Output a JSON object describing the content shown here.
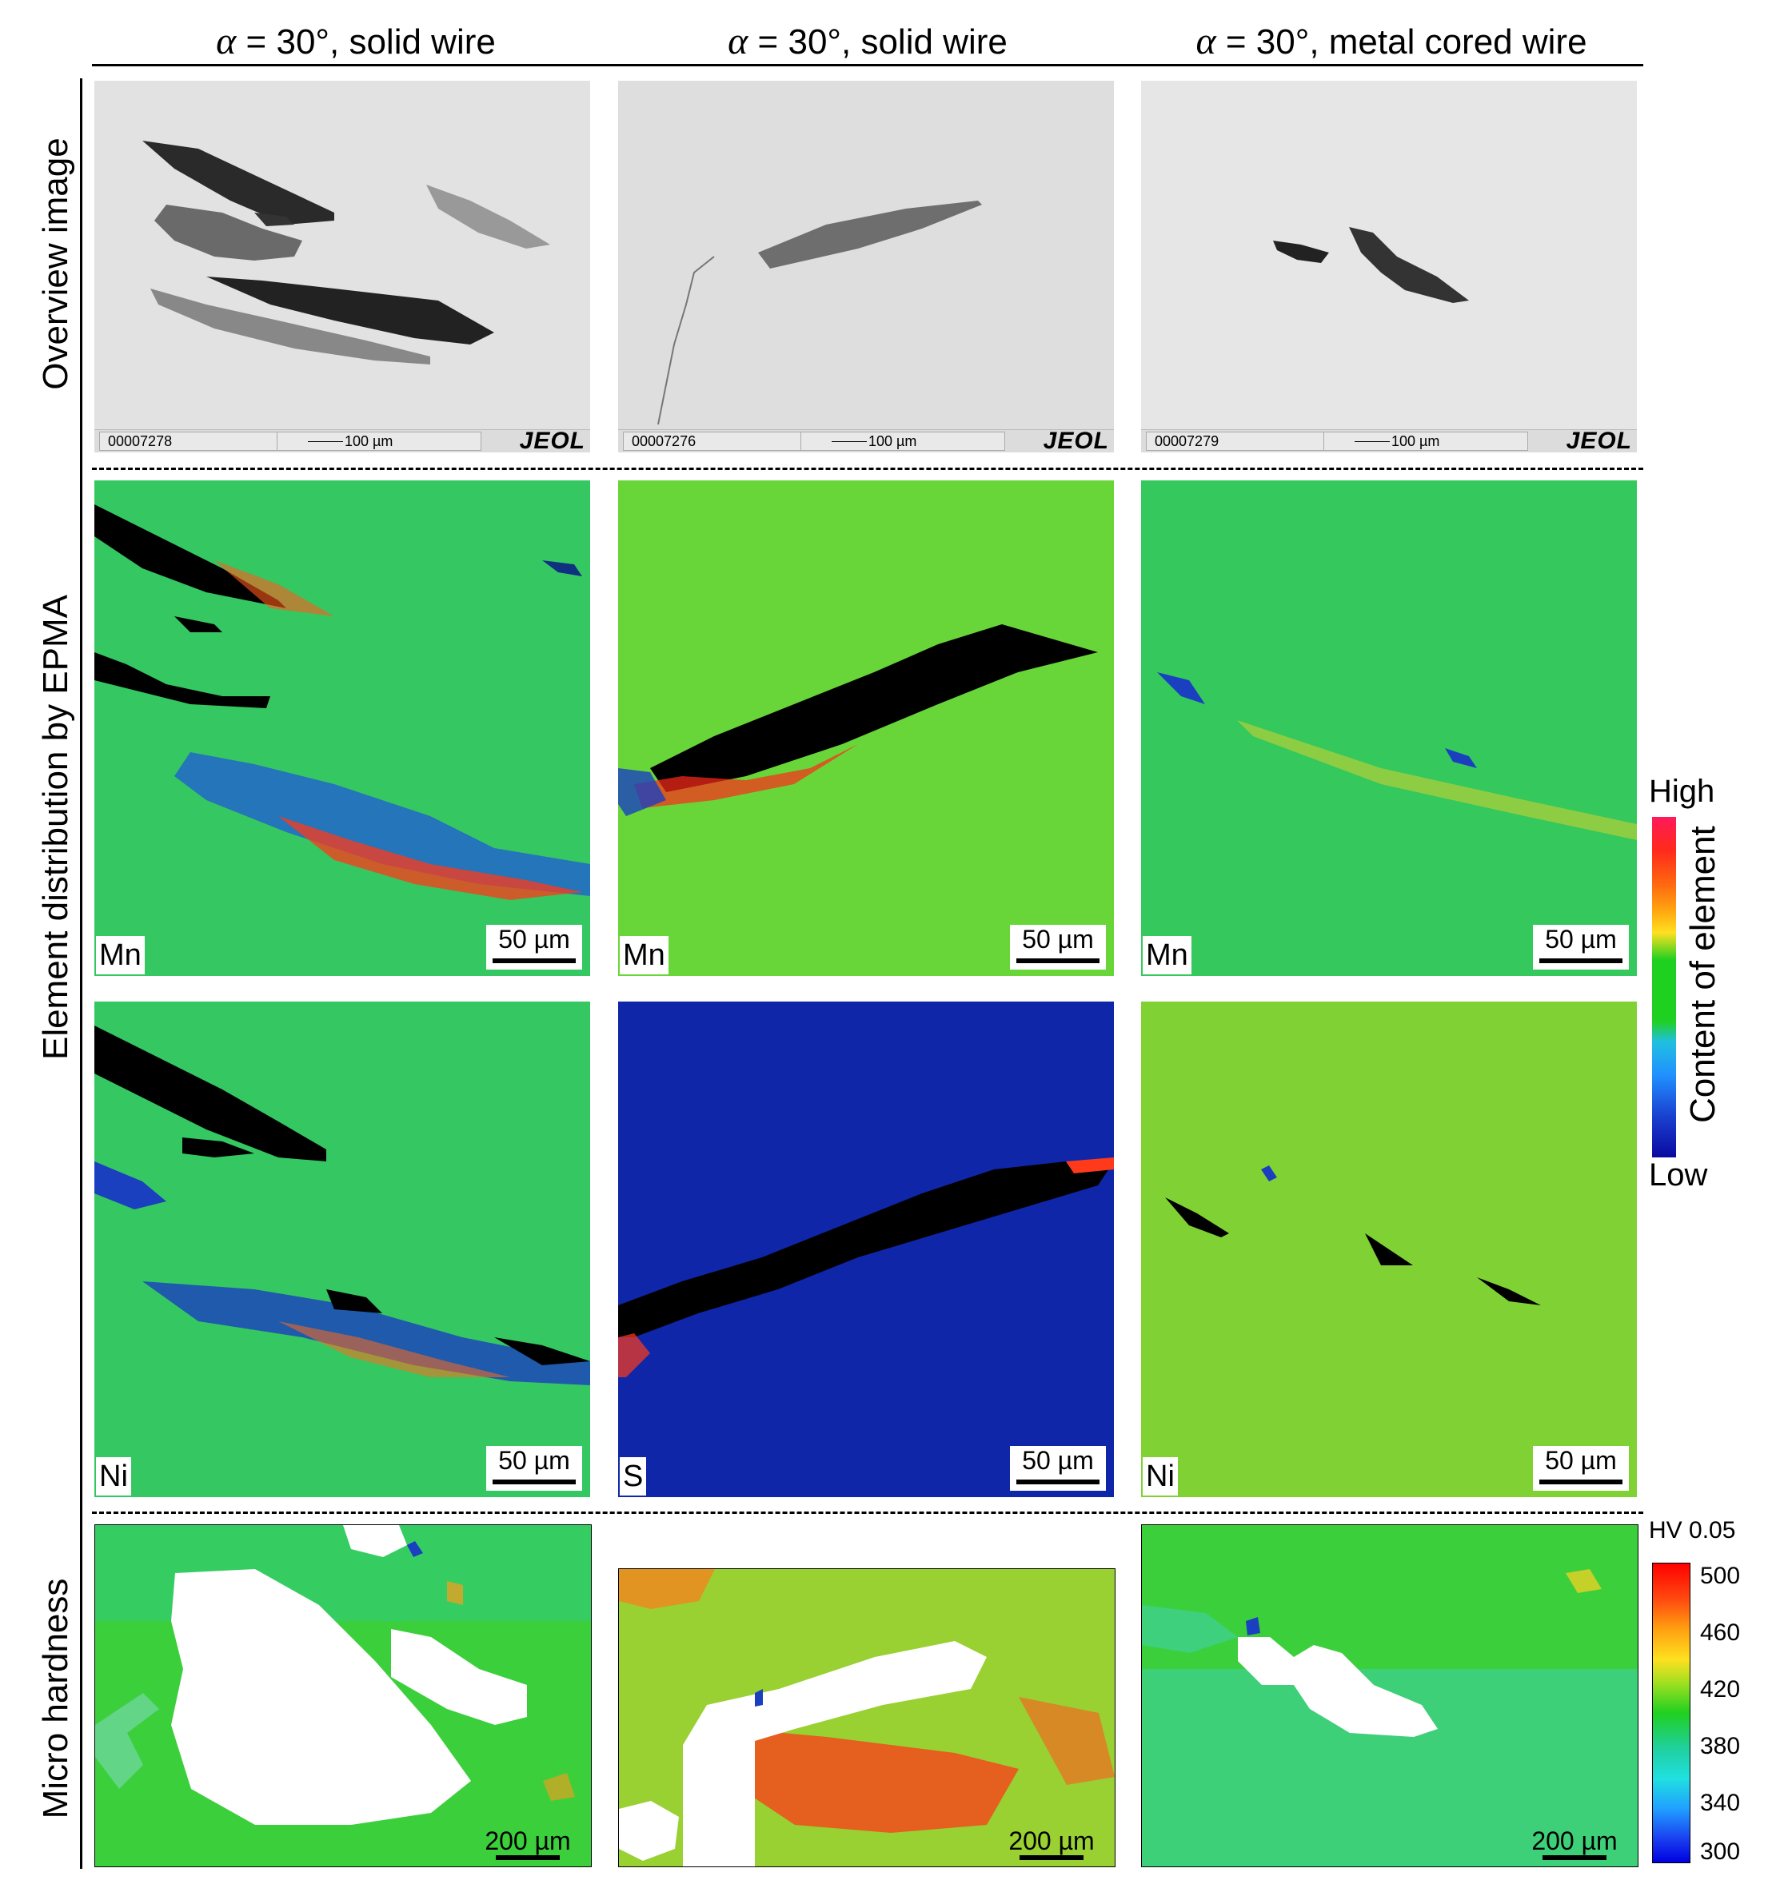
{
  "columns": [
    {
      "alpha": "α",
      "rest": " = 30°, solid wire"
    },
    {
      "alpha": "α",
      "rest": " = 30°, solid wire"
    },
    {
      "alpha": "α",
      "rest": " = 30°, metal cored wire"
    }
  ],
  "row_labels": {
    "overview": "Overview image",
    "epma": "Element distribution by EPMA",
    "hardness": "Micro hardness"
  },
  "sem": [
    {
      "id": "00007278",
      "scale": "100 µm",
      "brand": "JEOL"
    },
    {
      "id": "00007276",
      "scale": "100 µm",
      "brand": "JEOL"
    },
    {
      "id": "00007279",
      "scale": "100 µm",
      "brand": "JEOL"
    }
  ],
  "epma_row1": [
    {
      "element": "Mn",
      "scale": "50 µm"
    },
    {
      "element": "Mn",
      "scale": "50 µm"
    },
    {
      "element": "Mn",
      "scale": "50 µm"
    }
  ],
  "epma_row2": [
    {
      "element": "Ni",
      "scale": "50 µm"
    },
    {
      "element": "S",
      "scale": "50 µm"
    },
    {
      "element": "Ni",
      "scale": "50 µm"
    }
  ],
  "hardness_panels": [
    {
      "scale": "200 µm"
    },
    {
      "scale": "200 µm"
    },
    {
      "scale": "200 µm"
    }
  ],
  "epma_colorbar": {
    "high": "High",
    "low": "Low",
    "title": "Content of element"
  },
  "hardness_colorbar": {
    "title": "HV 0.05",
    "ticks": [
      "500",
      "460",
      "420",
      "380",
      "340",
      "300"
    ]
  },
  "colors": {
    "epma_bg": "#33cc33",
    "sulfur_bg": "#0a1a9a",
    "high": "#ff0000",
    "low": "#000080"
  }
}
